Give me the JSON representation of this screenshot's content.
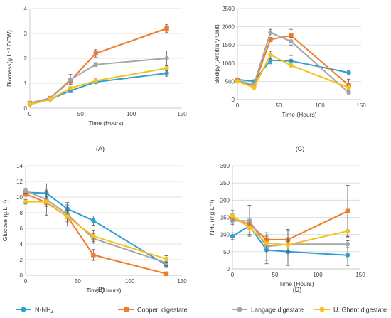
{
  "colors": {
    "N-NH4": "#2e9fd1",
    "Cooperl digestate": "#f07b2a",
    "Langage digestate": "#a5a5a5",
    "U. Ghent digestate": "#f5c21b"
  },
  "legend": {
    "position": "bottom",
    "items": [
      "N-NH4",
      "Cooperl digestate",
      "Langage digestate",
      "U. Ghent digestate"
    ]
  },
  "chart_data": [
    {
      "panel": "(A)",
      "type": "line",
      "ylabel": "Biomass(g L⁻¹ DCW)",
      "xlabel": "Time (Hours)",
      "xlim": [
        0,
        150
      ],
      "xticks": [
        0,
        50,
        100,
        150
      ],
      "ylim": [
        0,
        4
      ],
      "yticks": [
        0,
        1,
        2,
        3,
        4
      ],
      "x": [
        0,
        20,
        40,
        65,
        135
      ],
      "series": [
        {
          "name": "N-NH4",
          "values": [
            0.15,
            0.35,
            0.7,
            1.05,
            1.4
          ],
          "err": [
            0.05,
            0.05,
            0.08,
            0.05,
            0.12
          ]
        },
        {
          "name": "Cooperl digestate",
          "values": [
            0.2,
            0.4,
            1.1,
            2.2,
            3.2
          ],
          "err": [
            0.05,
            0.06,
            0.1,
            0.15,
            0.15
          ]
        },
        {
          "name": "Langage digestate",
          "values": [
            0.2,
            0.4,
            1.15,
            1.75,
            2.0
          ],
          "err": [
            0.05,
            0.06,
            0.2,
            0.08,
            0.3
          ]
        },
        {
          "name": "U. Ghent digestate",
          "values": [
            0.15,
            0.35,
            0.8,
            1.1,
            1.6
          ],
          "err": [
            0.04,
            0.05,
            0.06,
            0.08,
            0.1
          ]
        }
      ]
    },
    {
      "panel": "(C)",
      "type": "line",
      "ylabel": "Bodipy (Arbitrary Unit)",
      "xlabel": "Time (Hours)",
      "xlim": [
        0,
        150
      ],
      "xticks": [
        0,
        50,
        100,
        150
      ],
      "ylim": [
        0,
        2500
      ],
      "yticks": [
        0,
        500,
        1000,
        1500,
        2000,
        2500
      ],
      "x": [
        0,
        20,
        40,
        65,
        135
      ],
      "series": [
        {
          "name": "N-NH4",
          "values": [
            550,
            500,
            1080,
            1060,
            740
          ],
          "err": [
            30,
            30,
            100,
            150,
            60
          ]
        },
        {
          "name": "Cooperl digestate",
          "values": [
            520,
            380,
            1650,
            1760,
            390
          ],
          "err": [
            40,
            40,
            60,
            170,
            170
          ]
        },
        {
          "name": "Langage digestate",
          "values": [
            510,
            420,
            1840,
            1600,
            190
          ],
          "err": [
            40,
            40,
            90,
            100,
            60
          ]
        },
        {
          "name": "U. Ghent digestate",
          "values": [
            500,
            330,
            1230,
            940,
            330
          ],
          "err": [
            40,
            40,
            100,
            130,
            60
          ]
        }
      ]
    },
    {
      "panel": "(B)",
      "type": "line",
      "ylabel": "Glucose (g.L⁻¹)",
      "xlabel": "Time (Hours)",
      "xlim": [
        0,
        150
      ],
      "xticks": [
        0,
        50,
        100,
        150
      ],
      "ylim": [
        0,
        14
      ],
      "yticks": [
        0,
        2,
        4,
        6,
        8,
        10,
        12,
        14
      ],
      "x": [
        0,
        20,
        40,
        65,
        135
      ],
      "series": [
        {
          "name": "N-NH4",
          "values": [
            10.6,
            10.5,
            8.5,
            7.0,
            1.3
          ],
          "err": [
            0.3,
            0.4,
            0.5,
            0.6,
            0.3
          ]
        },
        {
          "name": "Cooperl digestate",
          "values": [
            10.4,
            9.3,
            7.5,
            2.6,
            0.2
          ],
          "err": [
            0.3,
            0.5,
            0.6,
            0.7,
            0.1
          ]
        },
        {
          "name": "Langage digestate",
          "values": [
            10.8,
            9.7,
            7.8,
            4.7,
            1.6
          ],
          "err": [
            0.3,
            2.0,
            1.5,
            0.6,
            0.4
          ]
        },
        {
          "name": "U. Ghent digestate",
          "values": [
            9.4,
            9.4,
            7.5,
            5.0,
            2.1
          ],
          "err": [
            0.3,
            0.6,
            0.8,
            0.7,
            0.4
          ]
        }
      ]
    },
    {
      "panel": "(D)",
      "type": "line",
      "ylabel": "NH₄ (mg.L⁻¹)",
      "xlabel": "Time (Hours)",
      "xlim": [
        0,
        150
      ],
      "xticks": [
        0,
        50,
        100,
        150
      ],
      "ylim": [
        0,
        300
      ],
      "yticks": [
        0,
        50,
        100,
        150,
        200,
        250,
        300
      ],
      "x": [
        0,
        20,
        40,
        65,
        135
      ],
      "series": [
        {
          "name": "N-NH4",
          "values": [
            95,
            125,
            55,
            50,
            40
          ],
          "err": [
            10,
            20,
            40,
            40,
            30
          ]
        },
        {
          "name": "Cooperl digestate",
          "values": [
            145,
            130,
            85,
            85,
            168
          ],
          "err": [
            15,
            15,
            20,
            30,
            75
          ]
        },
        {
          "name": "Langage digestate",
          "values": [
            140,
            140,
            65,
            72,
            72
          ],
          "err": [
            15,
            45,
            40,
            40,
            10
          ]
        },
        {
          "name": "U. Ghent digestate",
          "values": [
            155,
            120,
            75,
            70,
            110
          ],
          "err": [
            15,
            20,
            20,
            20,
            15
          ]
        }
      ]
    }
  ]
}
